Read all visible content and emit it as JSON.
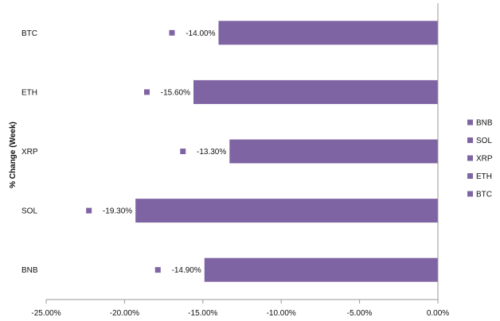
{
  "chart_data": {
    "type": "bar",
    "orientation": "horizontal",
    "categories": [
      "BTC",
      "ETH",
      "XRP",
      "SOL",
      "BNB"
    ],
    "values": [
      -14.0,
      -15.6,
      -13.3,
      -19.3,
      -14.9
    ],
    "data_labels": [
      "-14.00%",
      "-15.60%",
      "-13.30%",
      "-19.30%",
      "-14.90%"
    ],
    "ylabel": "% Change (Week)",
    "xlim": [
      -25,
      0
    ],
    "x_ticks": [
      -25,
      -20,
      -15,
      -10,
      -5,
      0
    ],
    "x_tick_labels": [
      "-25.00%",
      "-20.00%",
      "-15.00%",
      "-10.00%",
      "-5.00%",
      "0.00%"
    ],
    "grid": false,
    "legend": {
      "position": "right",
      "entries": [
        "BNB",
        "SOL",
        "XRP",
        "ETH",
        "BTC"
      ]
    },
    "colors": {
      "bar": "#7f64a3",
      "axis": "#9a9a9a"
    }
  }
}
